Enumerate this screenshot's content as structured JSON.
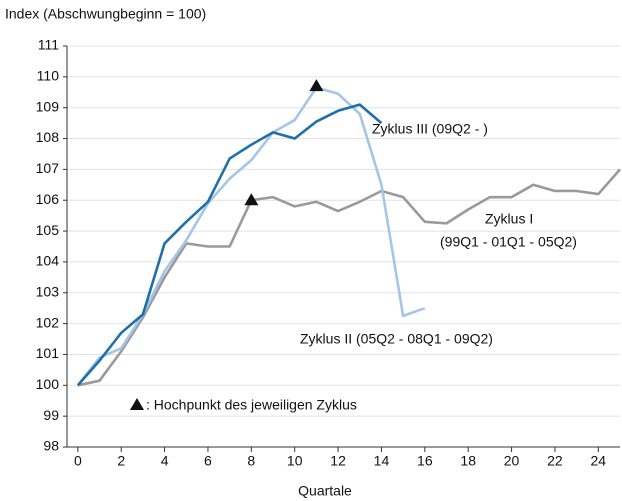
{
  "chart_data": {
    "type": "line",
    "ylabel": "Index (Abschwungbeginn = 100)",
    "xlabel": "Quartale",
    "xlim": [
      -0.5,
      25
    ],
    "xticks": [
      0,
      2,
      4,
      6,
      8,
      10,
      12,
      14,
      16,
      18,
      20,
      22,
      24
    ],
    "ylim": [
      98,
      111
    ],
    "yticks": [
      98,
      99,
      100,
      101,
      102,
      103,
      104,
      105,
      106,
      107,
      108,
      109,
      110,
      111
    ],
    "grid": true,
    "series": [
      {
        "name": "Zyklus I",
        "color": "#9a9a9a",
        "x": [
          0,
          1,
          2,
          3,
          4,
          5,
          6,
          7,
          8,
          9,
          10,
          11,
          12,
          13,
          14,
          15,
          16,
          17,
          18,
          19,
          20,
          21,
          22,
          23,
          24,
          25
        ],
        "values": [
          100,
          100.15,
          101.1,
          102.2,
          103.5,
          104.6,
          104.5,
          104.5,
          106.0,
          106.1,
          105.8,
          105.95,
          105.65,
          105.95,
          106.3,
          106.1,
          105.3,
          105.25,
          105.7,
          106.1,
          106.1,
          106.5,
          106.3,
          106.3,
          106.2,
          107.0
        ]
      },
      {
        "name": "Zyklus II (05Q2 - 08Q1 - 09Q2)",
        "color": "#a3c6e8",
        "x": [
          0,
          1,
          2,
          3,
          4,
          5,
          6,
          7,
          8,
          9,
          10,
          11,
          12,
          13,
          14,
          15,
          16
        ],
        "values": [
          100,
          100.9,
          101.2,
          102.3,
          103.7,
          104.7,
          105.9,
          106.7,
          107.3,
          108.2,
          108.6,
          109.65,
          109.45,
          108.8,
          106.5,
          102.25,
          102.5
        ]
      },
      {
        "name": "Zyklus III (09Q2 - )",
        "color": "#1f6fa8",
        "x": [
          0,
          1,
          2,
          3,
          4,
          5,
          6,
          7,
          8,
          9,
          10,
          11,
          12,
          13,
          14
        ],
        "values": [
          100,
          100.8,
          101.7,
          102.3,
          104.6,
          105.3,
          105.95,
          107.35,
          107.8,
          108.2,
          108.0,
          108.55,
          108.9,
          109.1,
          108.5
        ]
      }
    ],
    "peaks": [
      {
        "x": 11,
        "y": 109.7
      },
      {
        "x": 8,
        "y": 106.0
      }
    ],
    "annotations": [
      "(99Q1 - 01Q1 - 05Q2)",
      ": Hochpunkt des jeweiligen Zyklus"
    ]
  }
}
